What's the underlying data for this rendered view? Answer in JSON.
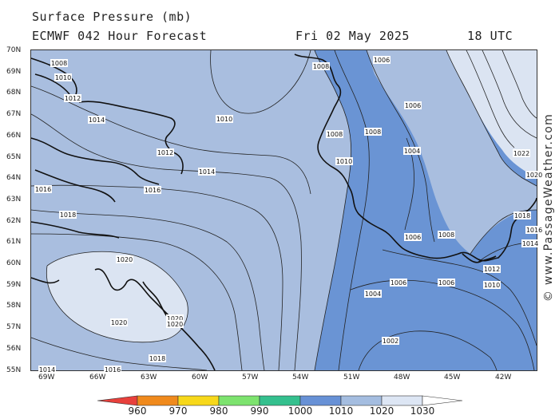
{
  "header": {
    "title": "Surface Pressure (mb)",
    "model": "ECMWF 042 Hour Forecast",
    "date": "Fri 02 May 2025",
    "time": "18 UTC"
  },
  "watermark": "© www.PassageWeather.com",
  "map": {
    "latitude_labels": [
      "70N",
      "69N",
      "68N",
      "67N",
      "66N",
      "65N",
      "64N",
      "63N",
      "62N",
      "61N",
      "60N",
      "59N",
      "58N",
      "57N",
      "56N",
      "55N"
    ],
    "longitude_labels": [
      "69W",
      "66W",
      "63W",
      "60W",
      "57W",
      "54W",
      "51W",
      "48W",
      "45W",
      "42W"
    ],
    "isobar_labels": [
      {
        "text": "1008",
        "id": "a"
      },
      {
        "text": "1010",
        "id": "b"
      },
      {
        "text": "1012",
        "id": "c"
      },
      {
        "text": "1014",
        "id": "d"
      },
      {
        "text": "1010",
        "id": "e"
      },
      {
        "text": "1012",
        "id": "f"
      },
      {
        "text": "1014",
        "id": "g"
      },
      {
        "text": "1016",
        "id": "h"
      },
      {
        "text": "1016",
        "id": "i"
      },
      {
        "text": "1018",
        "id": "j"
      },
      {
        "text": "1020",
        "id": "k"
      },
      {
        "text": "1020",
        "id": "l"
      },
      {
        "text": "1020",
        "id": "m"
      },
      {
        "text": "1020",
        "id": "n"
      },
      {
        "text": "1018",
        "id": "o"
      },
      {
        "text": "1016",
        "id": "p"
      },
      {
        "text": "1014",
        "id": "q"
      },
      {
        "text": "1008",
        "id": "r"
      },
      {
        "text": "1006",
        "id": "s"
      },
      {
        "text": "1006",
        "id": "t"
      },
      {
        "text": "1008",
        "id": "u"
      },
      {
        "text": "1008",
        "id": "v"
      },
      {
        "text": "1010",
        "id": "w"
      },
      {
        "text": "1004",
        "id": "x"
      },
      {
        "text": "1006",
        "id": "y"
      },
      {
        "text": "1008",
        "id": "z"
      },
      {
        "text": "1006",
        "id": "aa"
      },
      {
        "text": "1006",
        "id": "ab"
      },
      {
        "text": "1004",
        "id": "ac"
      },
      {
        "text": "1002",
        "id": "ad"
      },
      {
        "text": "1022",
        "id": "ae"
      },
      {
        "text": "1020",
        "id": "af"
      },
      {
        "text": "1018",
        "id": "ag"
      },
      {
        "text": "1016",
        "id": "ah"
      },
      {
        "text": "1014",
        "id": "ai"
      },
      {
        "text": "1012",
        "id": "aj"
      },
      {
        "text": "1010",
        "id": "ak"
      }
    ]
  },
  "legend": {
    "labels": [
      "960",
      "970",
      "980",
      "990",
      "1000",
      "1010",
      "1020",
      "1030"
    ],
    "colors": [
      "#e8403c",
      "#f08a1c",
      "#f7d81a",
      "#7de36e",
      "#34c08e",
      "#6791d6",
      "#a4bde0",
      "#dde6f4"
    ]
  }
}
